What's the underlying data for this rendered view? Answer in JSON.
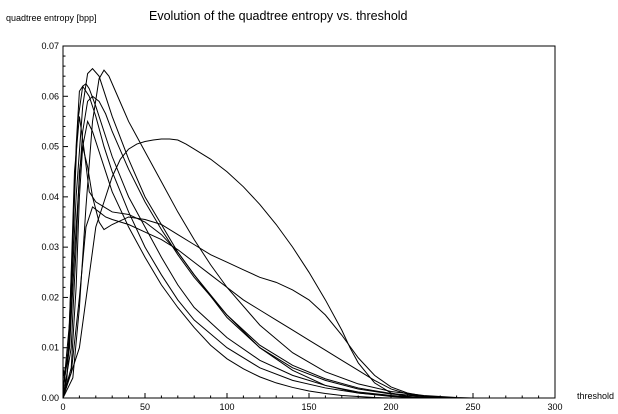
{
  "chart_data": {
    "type": "line",
    "title": "Evolution of the quadtree entropy vs. threshold",
    "xlabel": "threshold",
    "ylabel": "quadtree entropy [bpp]",
    "xlim": [
      0,
      300
    ],
    "ylim": [
      0,
      0.07
    ],
    "xticks": [
      0,
      50,
      100,
      150,
      200,
      250,
      300
    ],
    "yticks": [
      0.0,
      0.01,
      0.02,
      0.03,
      0.04,
      0.05,
      0.06,
      0.07
    ],
    "xtick_labels": [
      "0",
      "50",
      "100",
      "150",
      "200",
      "250",
      "300"
    ],
    "ytick_labels": [
      "0.00",
      "0.01",
      "0.02",
      "0.03",
      "0.04",
      "0.05",
      "0.06",
      "0.07"
    ],
    "grid": false,
    "legend": "none",
    "series": [
      {
        "x": [
          0,
          2,
          4,
          6,
          8,
          10,
          12,
          16,
          20,
          25,
          30,
          40,
          50,
          60,
          70,
          80,
          100,
          120,
          140,
          160,
          180,
          200,
          220,
          240,
          255
        ],
        "y": [
          0.006,
          0.002,
          0.012,
          0.03,
          0.05,
          0.061,
          0.062,
          0.06,
          0.056,
          0.05,
          0.045,
          0.037,
          0.03,
          0.0245,
          0.0195,
          0.0155,
          0.01,
          0.006,
          0.0035,
          0.002,
          0.001,
          0.0004,
          0.0001,
          0.0,
          0.0
        ]
      },
      {
        "x": [
          0,
          3,
          6,
          9,
          12,
          14,
          16,
          20,
          25,
          30,
          40,
          50,
          60,
          70,
          80,
          100,
          120,
          140,
          160,
          180,
          200,
          215,
          230,
          250
        ],
        "y": [
          0.004,
          0.008,
          0.032,
          0.055,
          0.062,
          0.0625,
          0.0615,
          0.058,
          0.053,
          0.048,
          0.04,
          0.034,
          0.028,
          0.0225,
          0.018,
          0.012,
          0.0075,
          0.0045,
          0.0025,
          0.0012,
          0.0005,
          0.0002,
          0.0,
          0.0
        ]
      },
      {
        "x": [
          0,
          4,
          8,
          12,
          15,
          18,
          22,
          26,
          30,
          40,
          50,
          60,
          70,
          80,
          100,
          120,
          140,
          160,
          180,
          200,
          220,
          240,
          250
        ],
        "y": [
          0.001,
          0.012,
          0.04,
          0.058,
          0.0645,
          0.0655,
          0.064,
          0.06,
          0.056,
          0.0475,
          0.04,
          0.0345,
          0.029,
          0.0245,
          0.016,
          0.01,
          0.006,
          0.0035,
          0.0018,
          0.0008,
          0.0003,
          0.0,
          0.0
        ]
      },
      {
        "x": [
          0,
          6,
          10,
          14,
          18,
          22,
          25,
          28,
          32,
          40,
          50,
          60,
          70,
          80,
          90,
          100,
          120,
          140,
          160,
          180,
          200,
          220,
          240,
          250
        ],
        "y": [
          0.0,
          0.004,
          0.018,
          0.038,
          0.055,
          0.0635,
          0.0652,
          0.064,
          0.061,
          0.055,
          0.049,
          0.043,
          0.037,
          0.0315,
          0.0265,
          0.022,
          0.0145,
          0.009,
          0.0052,
          0.0028,
          0.0013,
          0.0005,
          0.0001,
          0.0
        ]
      },
      {
        "x": [
          0,
          4,
          8,
          12,
          15,
          18,
          22,
          26,
          30,
          40,
          50,
          60,
          70,
          80,
          100,
          120,
          140,
          160,
          180,
          200,
          220,
          240
        ],
        "y": [
          0.002,
          0.01,
          0.034,
          0.053,
          0.059,
          0.06,
          0.059,
          0.0565,
          0.053,
          0.0455,
          0.039,
          0.0335,
          0.0285,
          0.024,
          0.0165,
          0.0105,
          0.0065,
          0.0038,
          0.002,
          0.0009,
          0.0003,
          0.0
        ]
      },
      {
        "x": [
          0,
          4,
          7,
          10,
          13,
          16,
          20,
          25,
          30,
          40,
          50,
          60,
          70,
          80,
          90,
          100,
          120,
          140,
          160,
          180,
          200,
          220
        ],
        "y": [
          0.001,
          0.015,
          0.045,
          0.056,
          0.049,
          0.041,
          0.039,
          0.038,
          0.037,
          0.0365,
          0.035,
          0.0325,
          0.029,
          0.0245,
          0.0205,
          0.0165,
          0.01,
          0.0055,
          0.0025,
          0.001,
          0.0003,
          0.0
        ]
      },
      {
        "x": [
          0,
          5,
          8,
          10,
          12,
          15,
          18,
          22,
          25,
          30,
          40,
          50,
          60,
          70,
          80,
          90,
          100,
          110,
          120,
          130,
          140,
          150,
          160,
          170,
          180,
          190,
          200,
          210,
          220,
          230,
          240,
          250
        ],
        "y": [
          0.0,
          0.01,
          0.03,
          0.045,
          0.05,
          0.046,
          0.04,
          0.035,
          0.0335,
          0.0345,
          0.036,
          0.0355,
          0.0345,
          0.0325,
          0.0305,
          0.0285,
          0.027,
          0.0255,
          0.024,
          0.023,
          0.0215,
          0.0195,
          0.0165,
          0.0125,
          0.008,
          0.0045,
          0.0022,
          0.001,
          0.0004,
          0.0001,
          0.0,
          0.0
        ]
      },
      {
        "x": [
          0,
          5,
          10,
          14,
          18,
          22,
          26,
          30,
          35,
          40,
          50,
          60,
          70,
          80,
          90,
          100,
          110,
          120,
          130,
          140,
          150,
          160,
          170,
          180,
          190,
          200,
          210,
          220,
          230,
          240
        ],
        "y": [
          0.001,
          0.005,
          0.02,
          0.034,
          0.038,
          0.037,
          0.036,
          0.0355,
          0.035,
          0.0345,
          0.033,
          0.0315,
          0.0295,
          0.027,
          0.0245,
          0.022,
          0.0195,
          0.0175,
          0.0155,
          0.0135,
          0.0115,
          0.0095,
          0.0075,
          0.0055,
          0.0035,
          0.0018,
          0.0008,
          0.0003,
          0.0001,
          0.0
        ]
      },
      {
        "x": [
          0,
          10,
          20,
          25,
          30,
          35,
          40,
          45,
          50,
          55,
          60,
          65,
          70,
          75,
          80,
          90,
          100,
          110,
          120,
          130,
          140,
          150,
          160,
          170,
          175,
          180,
          190,
          200,
          210,
          220
        ],
        "y": [
          0.0,
          0.01,
          0.034,
          0.039,
          0.044,
          0.0475,
          0.0495,
          0.0505,
          0.051,
          0.0513,
          0.0515,
          0.0515,
          0.0513,
          0.0505,
          0.0495,
          0.0475,
          0.045,
          0.042,
          0.0385,
          0.0345,
          0.03,
          0.025,
          0.0195,
          0.0135,
          0.01,
          0.007,
          0.003,
          0.001,
          0.0003,
          0.0
        ]
      },
      {
        "x": [
          0,
          5,
          8,
          10,
          12,
          15,
          18,
          22,
          26,
          30,
          40,
          50,
          60,
          70,
          80,
          90,
          100,
          110,
          120,
          130,
          140,
          150,
          160,
          170,
          180,
          190,
          200,
          220
        ],
        "y": [
          0.0,
          0.006,
          0.022,
          0.04,
          0.05,
          0.055,
          0.053,
          0.049,
          0.045,
          0.041,
          0.034,
          0.028,
          0.0225,
          0.018,
          0.014,
          0.0105,
          0.0078,
          0.0058,
          0.0042,
          0.003,
          0.0021,
          0.0014,
          0.0009,
          0.0005,
          0.0003,
          0.0001,
          0.0,
          0.0
        ]
      }
    ]
  }
}
